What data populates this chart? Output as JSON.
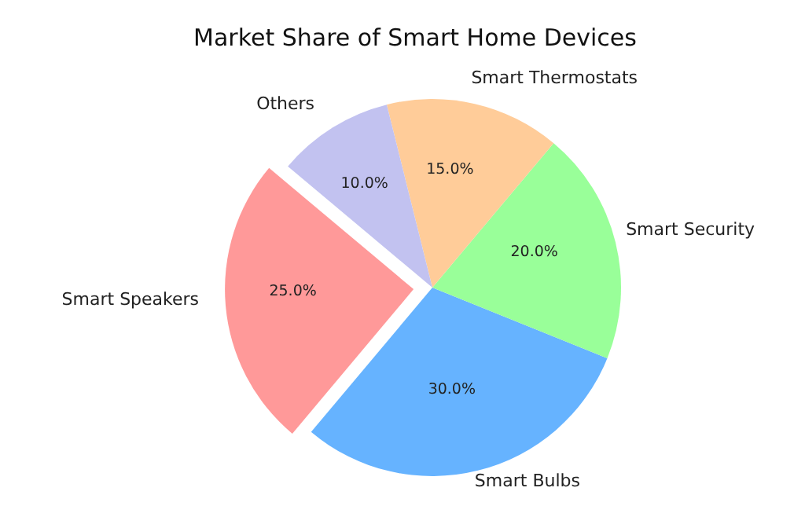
{
  "chart_data": {
    "type": "pie",
    "title": "Market Share of Smart Home Devices",
    "categories": [
      "Smart Speakers",
      "Smart Bulbs",
      "Smart Security",
      "Smart Thermostats",
      "Others"
    ],
    "values": [
      25,
      30,
      20,
      15,
      10
    ],
    "value_labels": [
      "25.0%",
      "30.0%",
      "20.0%",
      "15.0%",
      "10.0%"
    ],
    "colors": [
      "#ff9999",
      "#66b3ff",
      "#99ff99",
      "#ffcc99",
      "#c2c2f0"
    ]
  }
}
